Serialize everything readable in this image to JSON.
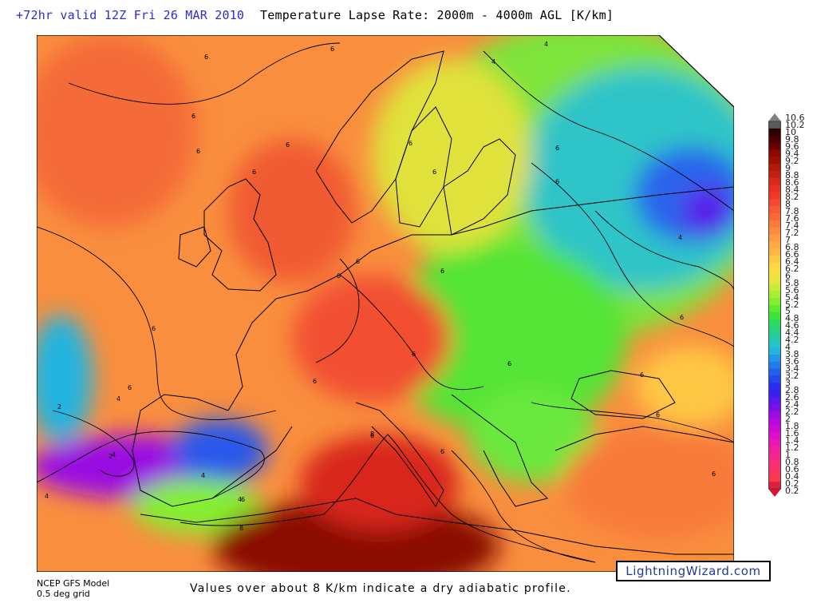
{
  "header": {
    "forecast": "+72hr valid 12Z Fri 26 MAR 2010",
    "title": "Temperature Lapse Rate: 2000m - 4000m AGL  [K/km]"
  },
  "map": {
    "contour_labels": [
      "6",
      "6",
      "6",
      "6",
      "6",
      "6",
      "6",
      "6",
      "6",
      "6",
      "6",
      "6",
      "6",
      "6",
      "6",
      "6",
      "6",
      "6",
      "6",
      "6",
      "6",
      "6",
      "6",
      "6",
      "6",
      "4",
      "4",
      "4",
      "4",
      "4",
      "4",
      "4",
      "2",
      "2",
      "8",
      "8",
      "4"
    ]
  },
  "legend": {
    "labels": [
      "10.6",
      "10.2",
      "10",
      "9.8",
      "9.6",
      "9.4",
      "9.2",
      "9",
      "8.8",
      "8.6",
      "8.4",
      "8.2",
      "8",
      "7.8",
      "7.6",
      "7.4",
      "7.2",
      "7",
      "6.8",
      "6.6",
      "6.4",
      "6.2",
      "6",
      "5.8",
      "5.6",
      "5.4",
      "5.2",
      "5",
      "4.8",
      "4.6",
      "4.4",
      "4.2",
      "4",
      "3.8",
      "3.6",
      "3.4",
      "3.2",
      "3",
      "2.8",
      "2.6",
      "2.4",
      "2.2",
      "2",
      "1.8",
      "1.6",
      "1.4",
      "1.2",
      "1",
      "0.8",
      "0.6",
      "0.4",
      "0.2",
      "0.2"
    ],
    "colors": [
      "#5a5a5a",
      "#2a0000",
      "#4a0000",
      "#6a0000",
      "#8a0a00",
      "#a01000",
      "#b01a0a",
      "#c42010",
      "#d8281a",
      "#e83020",
      "#f03a28",
      "#f64a30",
      "#f85a34",
      "#fa6a38",
      "#fb7a3c",
      "#fc8a40",
      "#fd9a44",
      "#feaa46",
      "#ffb844",
      "#ffc844",
      "#ffd646",
      "#f4e040",
      "#e4e83c",
      "#c8ec38",
      "#a8ee34",
      "#86ee30",
      "#60ea2e",
      "#3ee43a",
      "#2cdc5a",
      "#26d480",
      "#24cca6",
      "#24c4c8",
      "#24b4e0",
      "#2498e8",
      "#247cec",
      "#2460ee",
      "#2448ee",
      "#2830ee",
      "#3a20ee",
      "#5a18ea",
      "#7a10e6",
      "#9a0ce2",
      "#b808de",
      "#cc0ad6",
      "#dc10c8",
      "#e818b4",
      "#f0209e",
      "#f42888",
      "#f63074",
      "#f83460",
      "#fa3850",
      "#e0203a"
    ],
    "top_arrow_color": "#808080",
    "bottom_arrow_color": "#e01030"
  },
  "footer": {
    "model": "NCEP GFS Model",
    "grid": "0.5 deg grid",
    "note": "Values over about 8 K/km indicate a dry adiabatic profile.",
    "brand": "LightningWizard.com"
  }
}
